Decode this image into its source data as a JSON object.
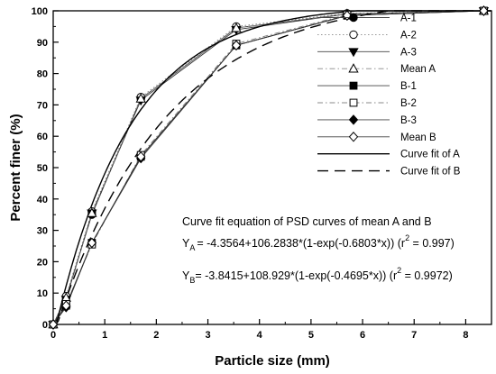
{
  "chart_data": {
    "type": "line",
    "xlabel": "Particle size (mm)",
    "ylabel": "Percent finer (%)",
    "xlim": [
      0,
      8.5
    ],
    "ylim": [
      0,
      100
    ],
    "xticks": [
      "0",
      "1",
      "2",
      "3",
      "4",
      "5",
      "6",
      "7",
      "8"
    ],
    "yticks": [
      "0",
      "10",
      "20",
      "30",
      "40",
      "50",
      "60",
      "70",
      "80",
      "90",
      "100"
    ],
    "grid": false,
    "legend_position": "top-right",
    "series": [
      {
        "name": "A-1",
        "marker": "filled-circle",
        "line": "solid-thin",
        "color": "#000000",
        "x": [
          0,
          0.25,
          0.75,
          1.7,
          3.55,
          5.7,
          8.35
        ],
        "y": [
          0,
          8.5,
          35,
          72,
          94.5,
          99,
          100
        ]
      },
      {
        "name": "A-2",
        "marker": "open-circle",
        "line": "dotted",
        "color": "#000000",
        "x": [
          0,
          0.25,
          0.75,
          1.7,
          3.55,
          5.7,
          8.35
        ],
        "y": [
          0,
          9,
          36,
          72.5,
          95,
          99.2,
          100
        ]
      },
      {
        "name": "A-3",
        "marker": "filled-triangle-down",
        "line": "solid-thin",
        "color": "#000000",
        "x": [
          0,
          0.25,
          0.75,
          1.7,
          3.55,
          5.7,
          8.35
        ],
        "y": [
          0,
          8,
          35.5,
          71.5,
          94,
          99,
          100
        ]
      },
      {
        "name": "Mean A",
        "marker": "open-triangle-up",
        "line": "dash-dot",
        "color": "#000000",
        "x": [
          0,
          0.25,
          0.75,
          1.7,
          3.55,
          5.7,
          8.35
        ],
        "y": [
          0,
          8.5,
          35.5,
          72,
          94.5,
          99,
          100
        ]
      },
      {
        "name": "B-1",
        "marker": "filled-square",
        "line": "solid-thin",
        "color": "#000000",
        "x": [
          0,
          0.25,
          0.75,
          1.7,
          3.55,
          5.7,
          8.35
        ],
        "y": [
          0,
          6,
          26,
          53.5,
          89,
          98.5,
          100
        ]
      },
      {
        "name": "B-2",
        "marker": "open-square",
        "line": "dash-dot",
        "color": "#000000",
        "x": [
          0,
          0.25,
          0.75,
          1.7,
          3.55,
          5.7,
          8.35
        ],
        "y": [
          0,
          6.5,
          25.5,
          54,
          89.5,
          98.8,
          100
        ]
      },
      {
        "name": "B-3",
        "marker": "filled-diamond",
        "line": "solid-thin",
        "color": "#000000",
        "x": [
          0,
          0.25,
          0.75,
          1.7,
          3.55,
          5.7,
          8.35
        ],
        "y": [
          0,
          5.5,
          26,
          53,
          89,
          98.5,
          100
        ]
      },
      {
        "name": "Mean B",
        "marker": "open-diamond",
        "line": "solid-thin",
        "color": "#000000",
        "x": [
          0,
          0.25,
          0.75,
          1.7,
          3.55,
          5.7,
          8.35
        ],
        "y": [
          0,
          6,
          26,
          53.5,
          89,
          98.5,
          100
        ]
      }
    ],
    "fits": [
      {
        "name": "Curve fit of A",
        "line": "solid",
        "a": -4.3564,
        "b": 106.2838,
        "k": 0.6803
      },
      {
        "name": "Curve fit of B",
        "line": "dashed",
        "a": -3.8415,
        "b": 108.929,
        "k": 0.4695
      }
    ],
    "annotations": {
      "title": "Curve fit equation of PSD curves of mean A and B",
      "eqA_y": "Y",
      "eqA_sub": "A",
      "eqA_body": "= -4.3564+106.2838*(1-exp(-0.6803*x)) (r",
      "eqA_sup": "2",
      "eqA_tail": " = 0.997)",
      "eqB_y": "Y",
      "eqB_sub": "B",
      "eqB_body": "= -3.8415+108.929*(1-exp(-0.4695*x)) (r",
      "eqB_sup": "2",
      "eqB_tail": " = 0.9972)"
    }
  }
}
